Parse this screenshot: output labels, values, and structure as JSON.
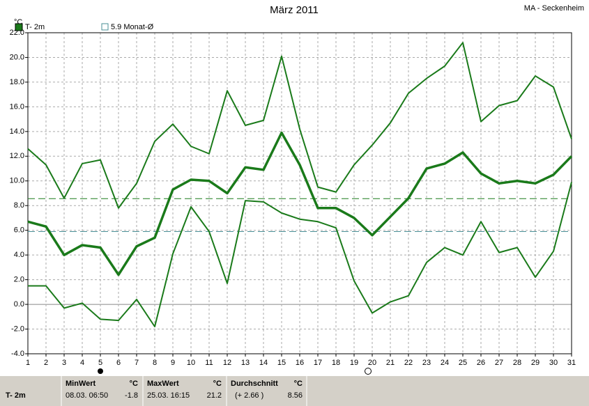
{
  "chart_data": {
    "type": "line",
    "title": "März 2011",
    "station": "MA - Seckenheim",
    "y_unit": "°C",
    "x": [
      1,
      2,
      3,
      4,
      5,
      6,
      7,
      8,
      9,
      10,
      11,
      12,
      13,
      14,
      15,
      16,
      17,
      18,
      19,
      20,
      21,
      22,
      23,
      24,
      25,
      26,
      27,
      28,
      29,
      30,
      31
    ],
    "xlim": [
      1,
      31
    ],
    "series": [
      {
        "name": "T- 2m",
        "color": "#1a7a1a",
        "values": [
          6.7,
          6.3,
          4.0,
          4.8,
          4.6,
          2.4,
          4.7,
          5.4,
          9.3,
          10.1,
          10.0,
          9.0,
          11.1,
          10.9,
          13.9,
          11.3,
          7.8,
          7.8,
          7.0,
          5.6,
          7.1,
          8.6,
          11.0,
          11.4,
          12.3,
          10.6,
          9.8,
          10.0,
          9.8,
          10.5,
          12.0
        ],
        "max": [
          12.6,
          11.3,
          8.6,
          11.4,
          11.7,
          7.8,
          9.8,
          13.2,
          14.6,
          12.8,
          12.2,
          17.3,
          14.5,
          14.9,
          20.1,
          14.2,
          9.5,
          9.1,
          11.3,
          12.9,
          14.7,
          17.1,
          18.3,
          19.3,
          21.2,
          14.8,
          16.1,
          16.5,
          18.5,
          17.6,
          13.4
        ],
        "min": [
          1.5,
          1.5,
          -0.3,
          0.1,
          -1.2,
          -1.3,
          0.4,
          -1.8,
          4.1,
          7.9,
          5.9,
          1.7,
          8.4,
          8.3,
          7.4,
          6.9,
          6.7,
          6.2,
          1.9,
          -0.7,
          0.2,
          0.7,
          3.4,
          4.6,
          4.0,
          6.7,
          4.2,
          4.6,
          2.2,
          4.3,
          9.9
        ]
      }
    ],
    "reference": {
      "name": "5.9 Monat-Ø",
      "value": 5.9,
      "color": "#4a8f96"
    },
    "ylim": [
      -4,
      22
    ],
    "yticks": [
      {
        "value": -4,
        "label": "-4.0"
      },
      {
        "value": -2,
        "label": "-2.0"
      },
      {
        "value": 0,
        "label": "0.0"
      },
      {
        "value": 2,
        "label": "2.0"
      },
      {
        "value": 4,
        "label": "4.0"
      },
      {
        "value": 6,
        "label": "6.0"
      },
      {
        "value": 8,
        "label": "8.0"
      },
      {
        "value": 10,
        "label": "10.0"
      },
      {
        "value": 12,
        "label": "12.0"
      },
      {
        "value": 14,
        "label": "14.0"
      },
      {
        "value": 16,
        "label": "16.0"
      },
      {
        "value": 18,
        "label": "18.0"
      },
      {
        "value": 20,
        "label": "20.0"
      },
      {
        "value": 22,
        "label": "22.0"
      }
    ],
    "grid": true
  },
  "stats": {
    "row": "T- 2m",
    "unit": "°C",
    "min": {
      "label": "MinWert",
      "time": "08.03.  06:50",
      "value": -1.8
    },
    "max": {
      "label": "MaxWert",
      "time": "25.03.  16:15",
      "value": 21.2
    },
    "average": {
      "label": "Durchschnitt",
      "deviation": "(+ 2.66 )",
      "value": 8.56
    }
  }
}
